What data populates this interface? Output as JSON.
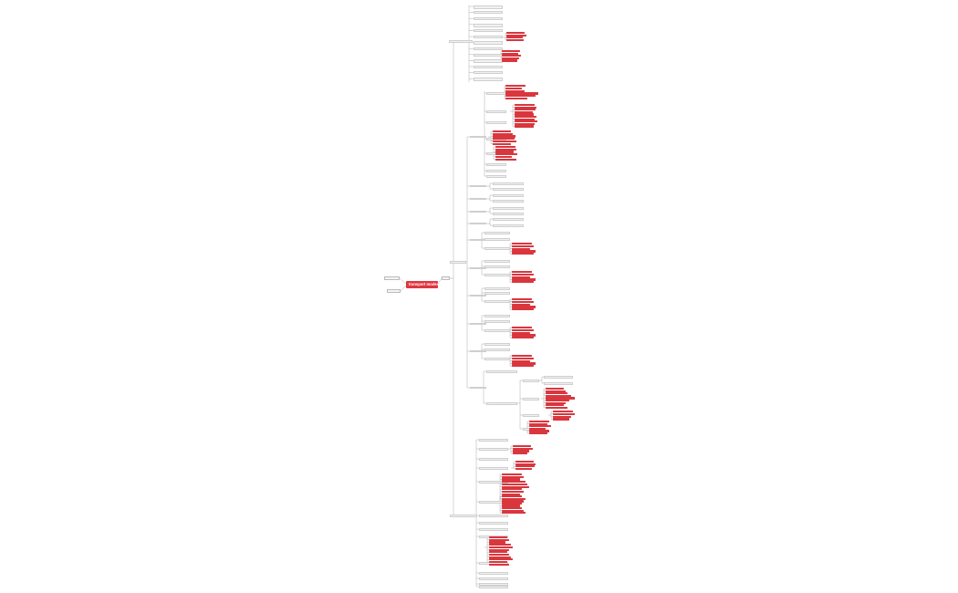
{
  "mindmap": {
    "root_label": "transport modes",
    "accent_color": "#e0353f",
    "redacted_color": "#d9363e",
    "line_color": "#9a9a9a"
  }
}
